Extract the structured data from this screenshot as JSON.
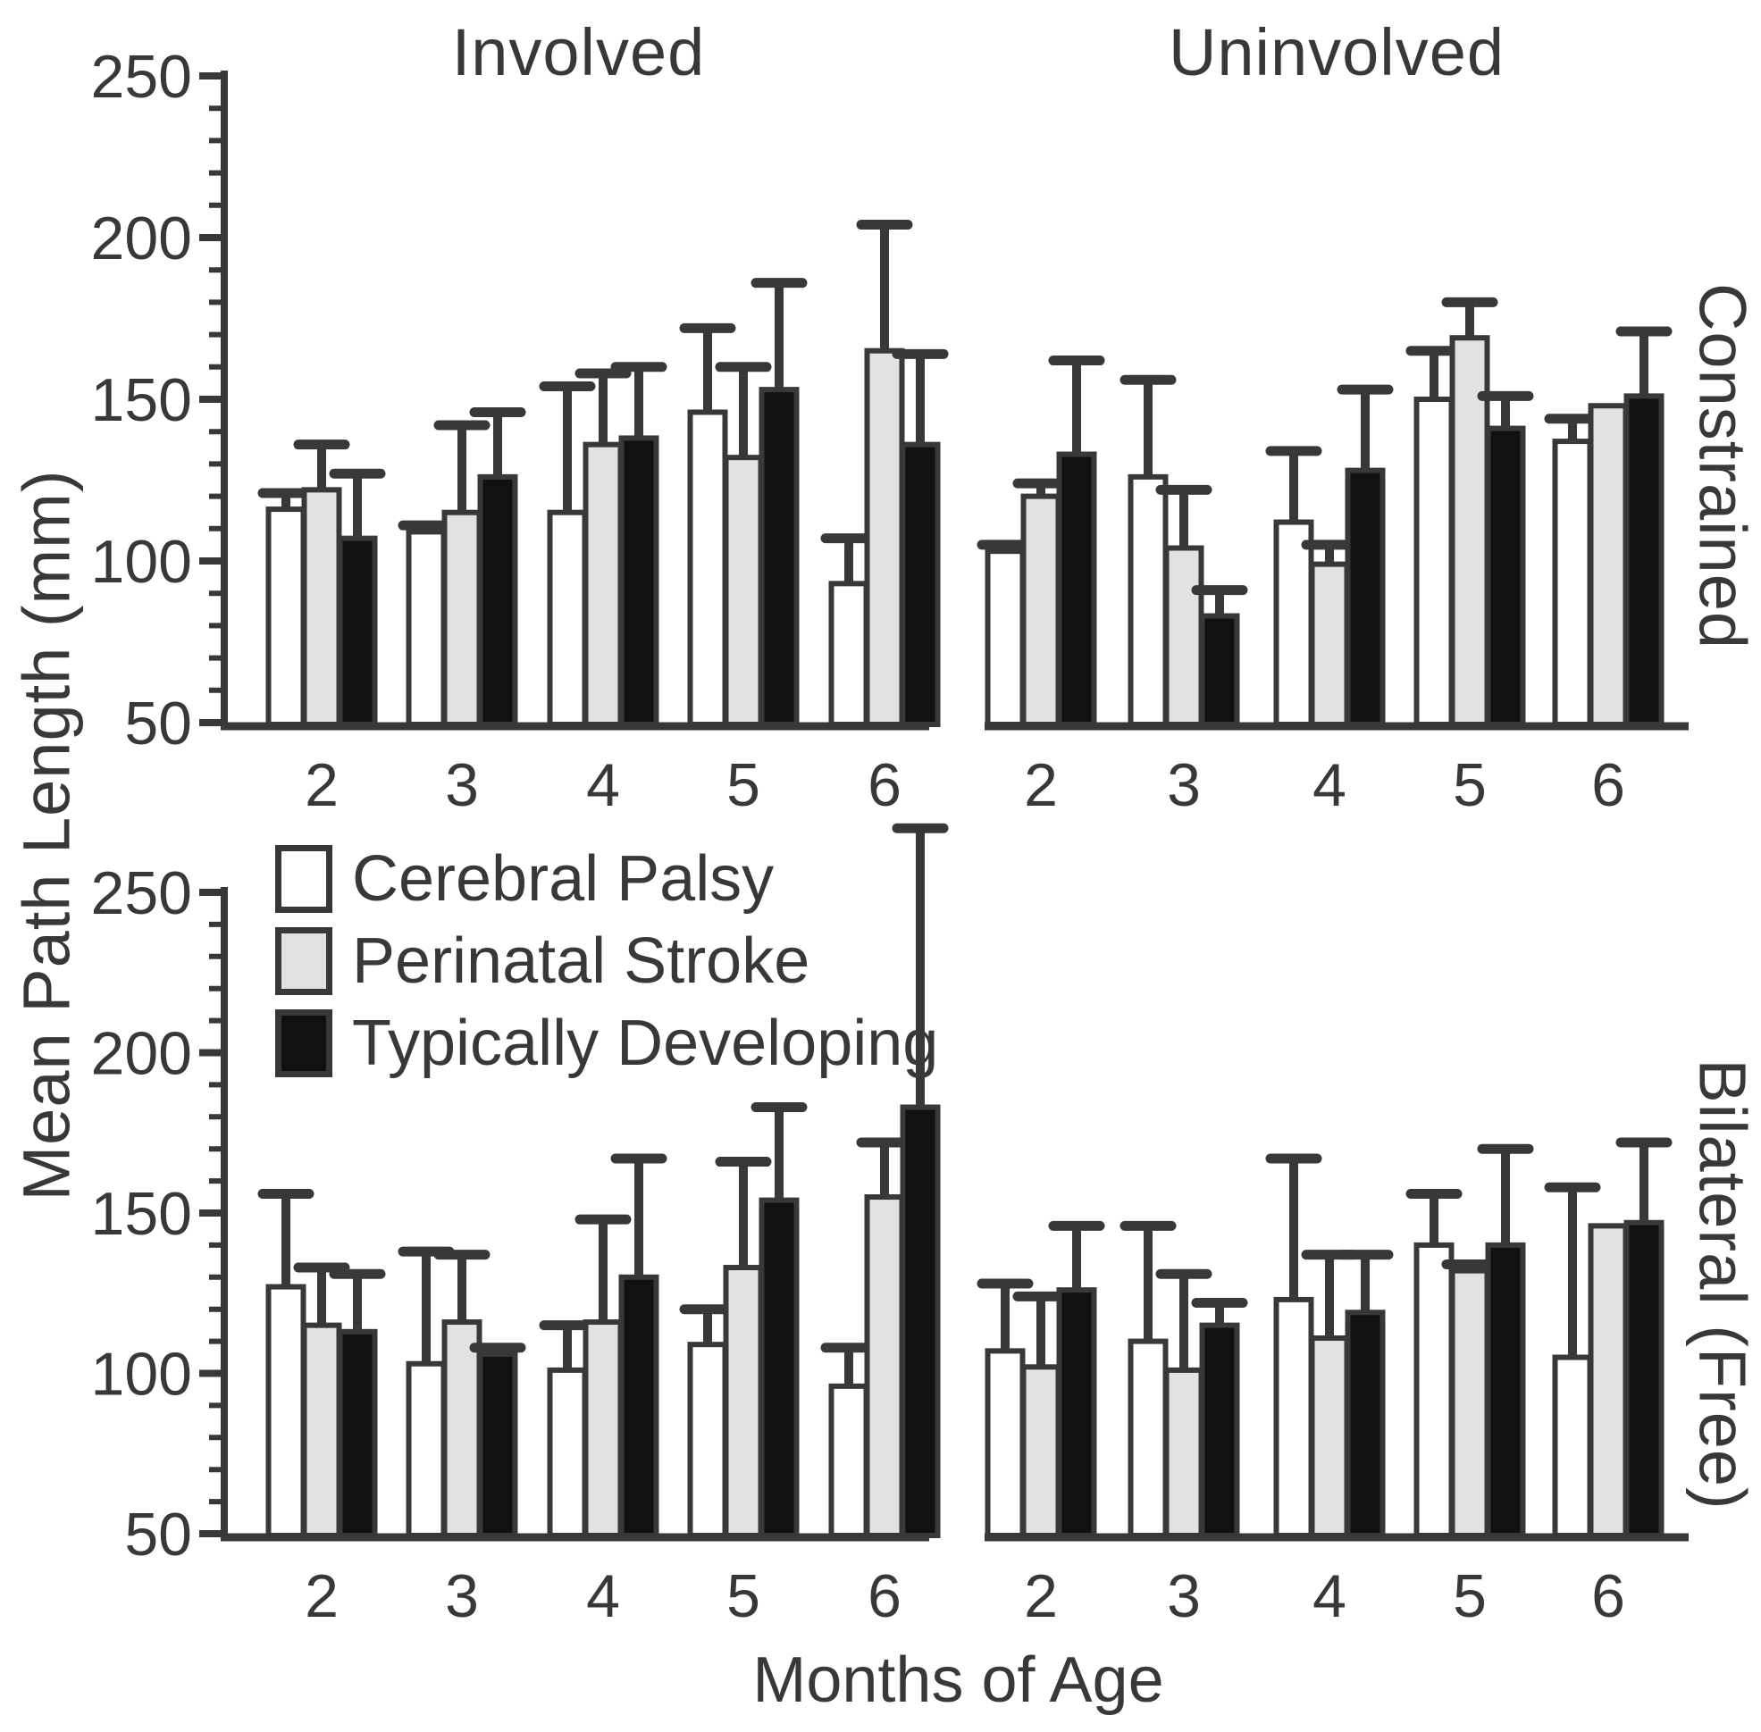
{
  "figure": {
    "ylabel": "Mean Path Length (mm)",
    "xlabel": "Months of Age",
    "col_titles": [
      "Involved",
      "Uninvolved"
    ],
    "row_labels": [
      "Constrained",
      "Bilateral (Free)"
    ],
    "colors": {
      "ink": "#383838",
      "series_fills": [
        "#ffffff",
        "#e2e2e2",
        "#111111"
      ]
    }
  },
  "legend": {
    "items": [
      {
        "label": "Cerebral Palsy",
        "fill": "#ffffff"
      },
      {
        "label": "Perinatal Stroke",
        "fill": "#e2e2e2"
      },
      {
        "label": "Typically Developing",
        "fill": "#111111"
      }
    ]
  },
  "chart_data": [
    {
      "type": "bar",
      "condition": "Involved",
      "task": "Constrained",
      "categories": [
        "2",
        "3",
        "4",
        "5",
        "6"
      ],
      "ylim": [
        50,
        250
      ],
      "yticks": [
        250,
        200,
        150,
        100,
        50
      ],
      "minor_tick_step": 10,
      "series": [
        {
          "name": "Cerebral Palsy",
          "values": [
            116,
            109,
            115,
            146,
            93
          ],
          "err_top": [
            121,
            111,
            154,
            172,
            107
          ]
        },
        {
          "name": "Perinatal Stroke",
          "values": [
            122,
            115,
            136,
            132,
            165
          ],
          "err_top": [
            136,
            142,
            158,
            160,
            204
          ]
        },
        {
          "name": "Typically Developing",
          "values": [
            107,
            126,
            138,
            153,
            136
          ],
          "err_top": [
            127,
            146,
            160,
            186,
            164
          ]
        }
      ]
    },
    {
      "type": "bar",
      "condition": "Uninvolved",
      "task": "Constrained",
      "categories": [
        "2",
        "3",
        "4",
        "5",
        "6"
      ],
      "ylim": [
        50,
        250
      ],
      "yticks": [
        250,
        200,
        150,
        100,
        50
      ],
      "minor_tick_step": 10,
      "series": [
        {
          "name": "Cerebral Palsy",
          "values": [
            103,
            126,
            112,
            150,
            137
          ],
          "err_top": [
            105,
            156,
            134,
            165,
            144
          ]
        },
        {
          "name": "Perinatal Stroke",
          "values": [
            120,
            104,
            99,
            169,
            148
          ],
          "err_top": [
            124,
            122,
            105,
            180,
            null
          ]
        },
        {
          "name": "Typically Developing",
          "values": [
            133,
            83,
            128,
            141,
            151
          ],
          "err_top": [
            162,
            91,
            153,
            151,
            171
          ]
        }
      ]
    },
    {
      "type": "bar",
      "condition": "Involved",
      "task": "Bilateral (Free)",
      "categories": [
        "2",
        "3",
        "4",
        "5",
        "6"
      ],
      "ylim": [
        50,
        250
      ],
      "yticks": [
        250,
        200,
        150,
        100,
        50
      ],
      "minor_tick_step": 10,
      "series": [
        {
          "name": "Cerebral Palsy",
          "values": [
            127,
            103,
            101,
            109,
            96
          ],
          "err_top": [
            156,
            138,
            115,
            120,
            108
          ]
        },
        {
          "name": "Perinatal Stroke",
          "values": [
            115,
            116,
            116,
            133,
            155
          ],
          "err_top": [
            133,
            137,
            148,
            166,
            172
          ]
        },
        {
          "name": "Typically Developing",
          "values": [
            113,
            106,
            130,
            154,
            183
          ],
          "err_top": [
            131,
            108,
            167,
            183,
            270
          ]
        }
      ]
    },
    {
      "type": "bar",
      "condition": "Uninvolved",
      "task": "Bilateral (Free)",
      "categories": [
        "2",
        "3",
        "4",
        "5",
        "6"
      ],
      "ylim": [
        50,
        250
      ],
      "yticks": [
        250,
        200,
        150,
        100,
        50
      ],
      "minor_tick_step": 10,
      "series": [
        {
          "name": "Cerebral Palsy",
          "values": [
            107,
            110,
            123,
            140,
            105
          ],
          "err_top": [
            128,
            146,
            167,
            156,
            158
          ]
        },
        {
          "name": "Perinatal Stroke",
          "values": [
            102,
            101,
            111,
            132,
            146
          ],
          "err_top": [
            124,
            131,
            137,
            134,
            null
          ]
        },
        {
          "name": "Typically Developing",
          "values": [
            126,
            115,
            119,
            140,
            147
          ],
          "err_top": [
            146,
            122,
            137,
            170,
            172
          ]
        }
      ]
    }
  ]
}
